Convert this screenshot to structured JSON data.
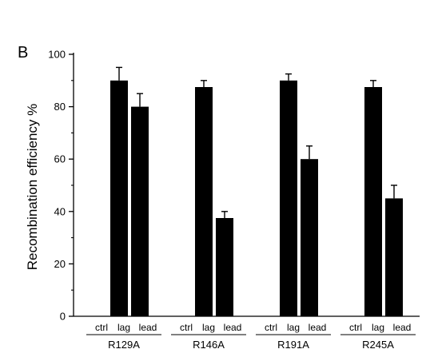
{
  "panel_letter": "B",
  "chart_data": {
    "type": "bar",
    "title": "",
    "xlabel": "",
    "ylabel": "Recombination efficiency %",
    "ylim": [
      0,
      100
    ],
    "yticks": [
      0,
      20,
      40,
      60,
      80,
      100
    ],
    "subcategories": [
      "ctrl",
      "lag",
      "lead"
    ],
    "groups": [
      {
        "name": "R129A",
        "values": [
          90,
          80
        ],
        "errors": [
          5,
          5
        ],
        "bar_labels": [
          "lag",
          "lead"
        ]
      },
      {
        "name": "R146A",
        "values": [
          87.5,
          37.5
        ],
        "errors": [
          2.5,
          2.5
        ],
        "bar_labels": [
          "lag",
          "lead"
        ]
      },
      {
        "name": "R191A",
        "values": [
          90,
          60
        ],
        "errors": [
          2.5,
          5
        ],
        "bar_labels": [
          "lag",
          "lead"
        ]
      },
      {
        "name": "R245A",
        "values": [
          87.5,
          45
        ],
        "errors": [
          2.5,
          5
        ],
        "bar_labels": [
          "lag",
          "lead"
        ]
      }
    ],
    "bar_color": "#000000",
    "grid": false,
    "legend": "none"
  }
}
